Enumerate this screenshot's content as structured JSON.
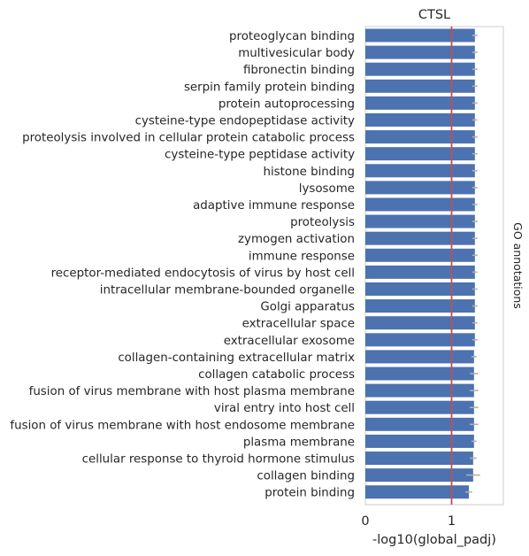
{
  "chart_data": {
    "type": "bar",
    "orientation": "horizontal",
    "title": "CTSL",
    "xlabel": "-log10(global_padj)",
    "ylabel": "",
    "side_label": "GO annotations",
    "xlim": [
      0,
      1.6
    ],
    "xticks": [
      0,
      1
    ],
    "reference_line": {
      "x": 1,
      "color": "#c44e52"
    },
    "bar_color": "#4c72b0",
    "errorbar_color": "#b0b0b0",
    "grid": false,
    "categories": [
      "proteoglycan binding",
      "multivesicular body",
      "fibronectin binding",
      "serpin family protein binding",
      "protein autoprocessing",
      "cysteine-type endopeptidase activity",
      "proteolysis involved in cellular protein catabolic process",
      "cysteine-type peptidase activity",
      "histone binding",
      "lysosome",
      "adaptive immune response",
      "proteolysis",
      "zymogen activation",
      "immune response",
      "receptor-mediated endocytosis of virus by host cell",
      "intracellular membrane-bounded organelle",
      "Golgi apparatus",
      "extracellular space",
      "extracellular exosome",
      "collagen-containing extracellular matrix",
      "collagen catabolic process",
      "fusion of virus membrane with host plasma membrane",
      "viral entry into host cell",
      "fusion of virus membrane with host endosome membrane",
      "plasma membrane",
      "cellular response to thyroid hormone stimulus",
      "collagen binding",
      "protein binding"
    ],
    "values": [
      1.27,
      1.27,
      1.27,
      1.27,
      1.27,
      1.27,
      1.27,
      1.27,
      1.27,
      1.27,
      1.27,
      1.27,
      1.27,
      1.27,
      1.27,
      1.27,
      1.27,
      1.27,
      1.27,
      1.26,
      1.26,
      1.26,
      1.26,
      1.26,
      1.26,
      1.25,
      1.25,
      1.2
    ],
    "errors": [
      0.03,
      0.03,
      0.03,
      0.03,
      0.03,
      0.03,
      0.03,
      0.03,
      0.03,
      0.03,
      0.03,
      0.03,
      0.03,
      0.03,
      0.03,
      0.03,
      0.03,
      0.03,
      0.03,
      0.03,
      0.05,
      0.05,
      0.05,
      0.05,
      0.03,
      0.04,
      0.08,
      0.04
    ]
  }
}
